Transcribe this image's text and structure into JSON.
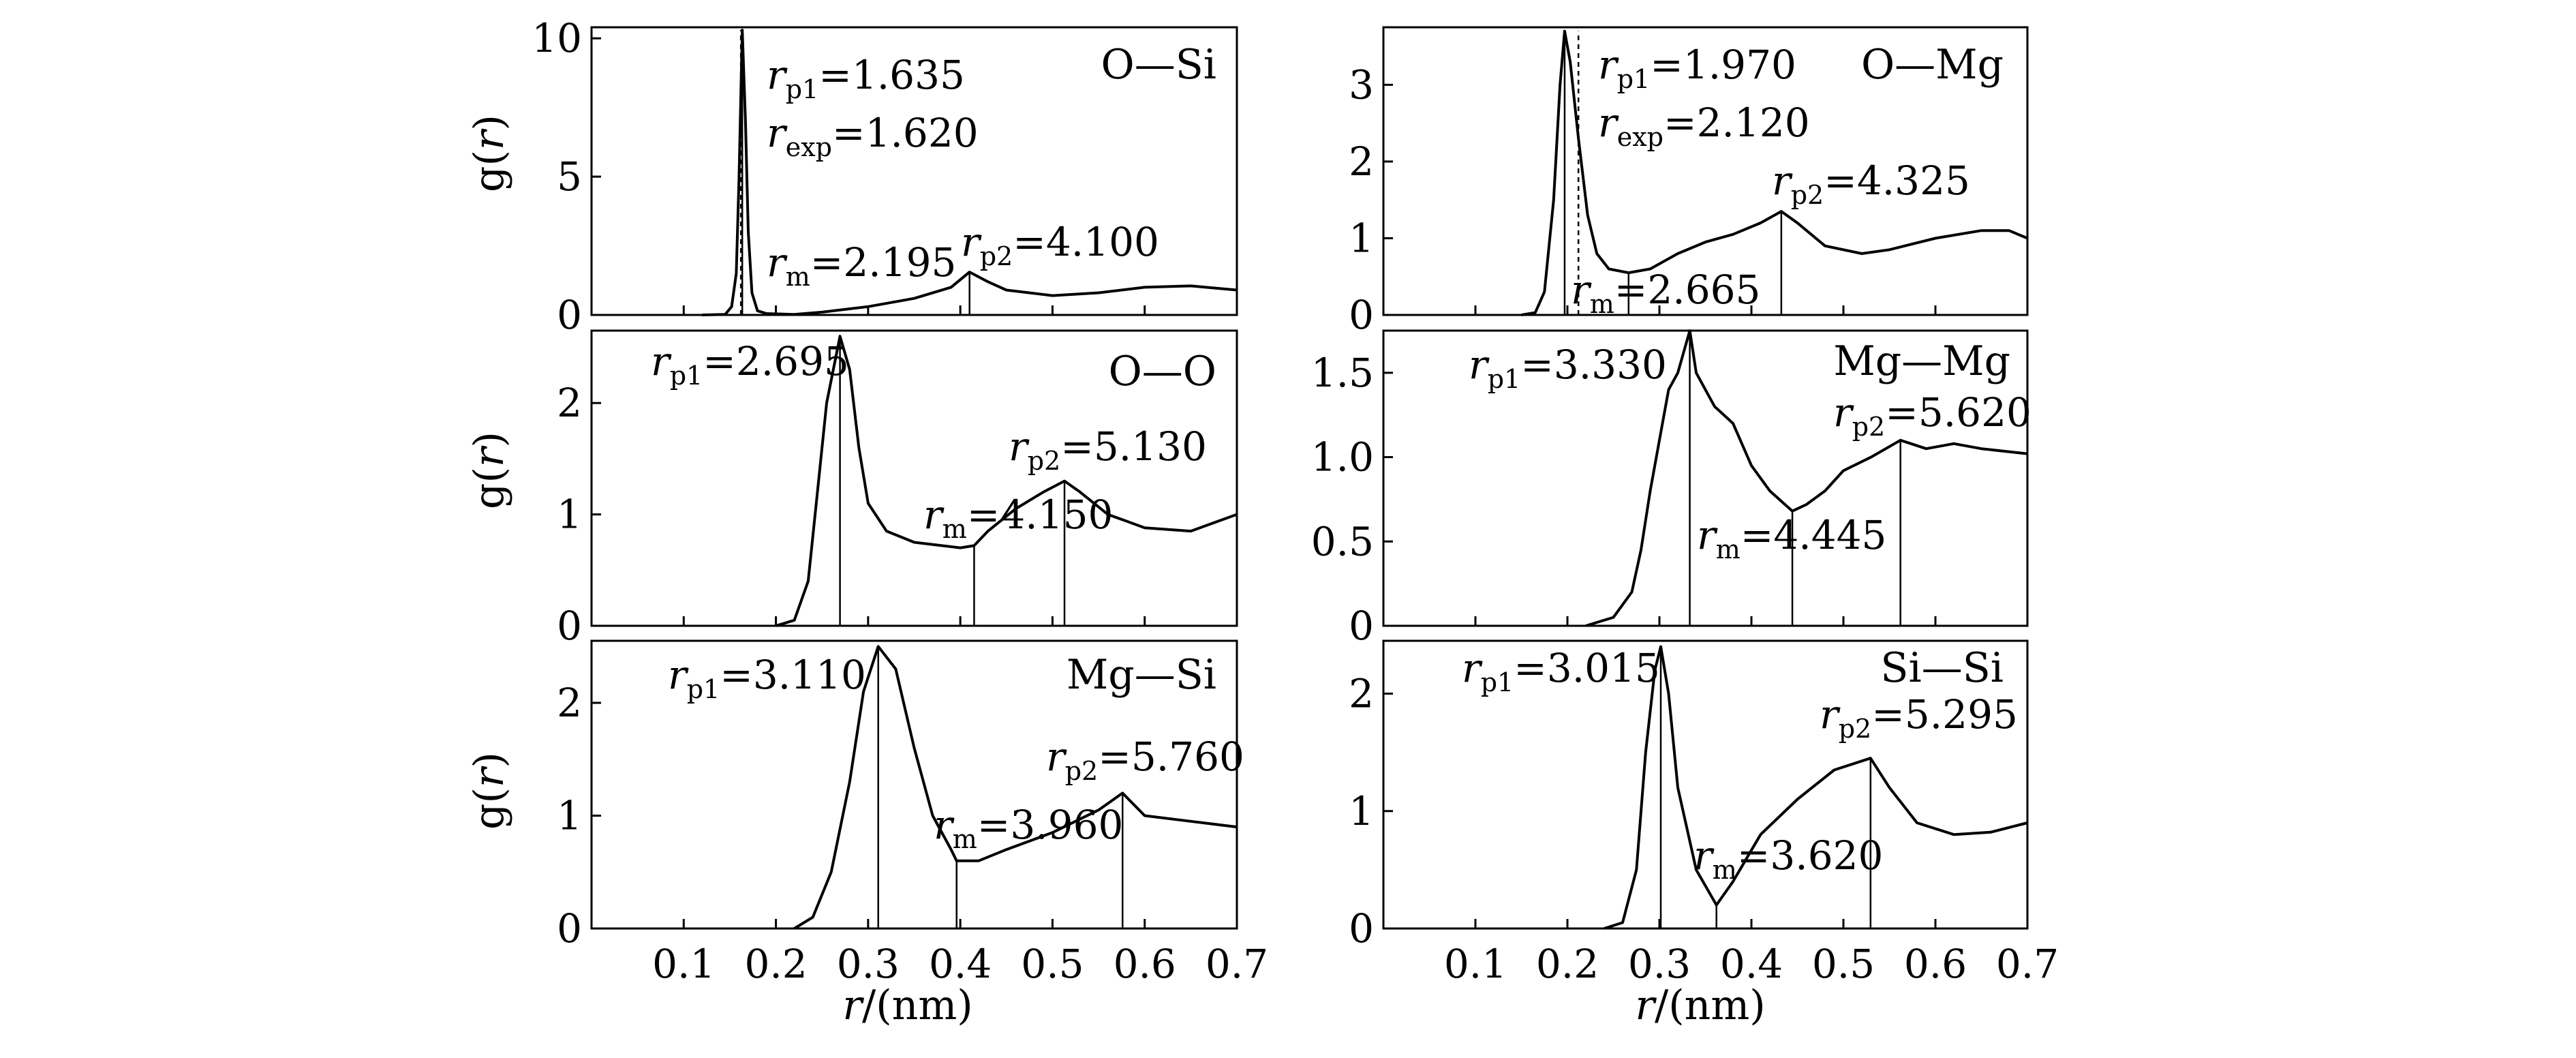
{
  "figure": {
    "x_axis_title_prefix": "r",
    "x_axis_title_suffix": "/(nm)",
    "y_axis_title_g": "g(",
    "y_axis_title_r": "r",
    "y_axis_title_close": ")"
  },
  "chart_data": [
    {
      "type": "line",
      "id": "O-Si",
      "label": "O—Si",
      "xlim": [
        0,
        0.7
      ],
      "ylim": [
        0,
        10.4
      ],
      "xticks": [
        0.1,
        0.2,
        0.3,
        0.4,
        0.5,
        0.6,
        0.7
      ],
      "show_xtick_labels": false,
      "yticks": [
        0,
        5,
        10
      ],
      "ytick_labels": [
        "0",
        "5",
        "10"
      ],
      "curve": [
        [
          0.12,
          0
        ],
        [
          0.145,
          0.02
        ],
        [
          0.152,
          0.3
        ],
        [
          0.157,
          1.5
        ],
        [
          0.16,
          5
        ],
        [
          0.1635,
          10.3
        ],
        [
          0.167,
          7
        ],
        [
          0.17,
          3
        ],
        [
          0.174,
          0.8
        ],
        [
          0.18,
          0.15
        ],
        [
          0.19,
          0.05
        ],
        [
          0.2195,
          0.02
        ],
        [
          0.25,
          0.1
        ],
        [
          0.3,
          0.3
        ],
        [
          0.35,
          0.6
        ],
        [
          0.39,
          1.0
        ],
        [
          0.41,
          1.55
        ],
        [
          0.43,
          1.2
        ],
        [
          0.45,
          0.9
        ],
        [
          0.5,
          0.7
        ],
        [
          0.55,
          0.8
        ],
        [
          0.6,
          1.0
        ],
        [
          0.65,
          1.05
        ],
        [
          0.7,
          0.9
        ]
      ],
      "vlines": [
        {
          "x": 0.1635,
          "y": 10.3,
          "style": "solid"
        },
        {
          "x": 0.162,
          "y": 10.3,
          "style": "dashed"
        },
        {
          "x": 0.41,
          "y": 1.55,
          "style": "solid"
        }
      ],
      "annotations": [
        {
          "main": "r",
          "sub": "p1",
          "value": "=1.635"
        },
        {
          "main": "r",
          "sub": "exp",
          "value": "=1.620"
        },
        {
          "main": "r",
          "sub": "m",
          "value": "=2.195"
        },
        {
          "main": "r",
          "sub": "p2",
          "value": "=4.100"
        }
      ]
    },
    {
      "type": "line",
      "id": "O-Mg",
      "label": "O—Mg",
      "xlim": [
        0,
        0.7
      ],
      "ylim": [
        0,
        3.75
      ],
      "xticks": [
        0.1,
        0.2,
        0.3,
        0.4,
        0.5,
        0.6,
        0.7
      ],
      "show_xtick_labels": false,
      "yticks": [
        0,
        1,
        2,
        3
      ],
      "ytick_labels": [
        "0",
        "1",
        "2",
        "3"
      ],
      "curve": [
        [
          0.15,
          0
        ],
        [
          0.165,
          0.03
        ],
        [
          0.175,
          0.3
        ],
        [
          0.185,
          1.5
        ],
        [
          0.192,
          3.0
        ],
        [
          0.197,
          3.7
        ],
        [
          0.203,
          3.3
        ],
        [
          0.212,
          2.3
        ],
        [
          0.222,
          1.3
        ],
        [
          0.232,
          0.8
        ],
        [
          0.245,
          0.6
        ],
        [
          0.2665,
          0.55
        ],
        [
          0.29,
          0.6
        ],
        [
          0.32,
          0.8
        ],
        [
          0.35,
          0.95
        ],
        [
          0.38,
          1.05
        ],
        [
          0.41,
          1.2
        ],
        [
          0.4325,
          1.35
        ],
        [
          0.45,
          1.2
        ],
        [
          0.48,
          0.9
        ],
        [
          0.52,
          0.8
        ],
        [
          0.55,
          0.85
        ],
        [
          0.6,
          1.0
        ],
        [
          0.65,
          1.1
        ],
        [
          0.68,
          1.1
        ],
        [
          0.7,
          1.0
        ]
      ],
      "vlines": [
        {
          "x": 0.197,
          "y": 3.7,
          "style": "solid"
        },
        {
          "x": 0.212,
          "y": 3.7,
          "style": "dashed"
        },
        {
          "x": 0.2665,
          "y": 0.55,
          "style": "solid"
        },
        {
          "x": 0.4325,
          "y": 1.35,
          "style": "solid"
        }
      ],
      "annotations": [
        {
          "main": "r",
          "sub": "p1",
          "value": "=1.970"
        },
        {
          "main": "r",
          "sub": "exp",
          "value": "=2.120"
        },
        {
          "main": "r",
          "sub": "p2",
          "value": "=4.325"
        },
        {
          "main": "r",
          "sub": "m",
          "value": "=2.665"
        }
      ]
    },
    {
      "type": "line",
      "id": "O-O",
      "label": "O—O",
      "xlim": [
        0,
        0.7
      ],
      "ylim": [
        0,
        2.65
      ],
      "xticks": [
        0.1,
        0.2,
        0.3,
        0.4,
        0.5,
        0.6,
        0.7
      ],
      "show_xtick_labels": false,
      "yticks": [
        0,
        1,
        2
      ],
      "ytick_labels": [
        "0",
        "1",
        "2"
      ],
      "curve": [
        [
          0.2,
          0
        ],
        [
          0.22,
          0.05
        ],
        [
          0.235,
          0.4
        ],
        [
          0.245,
          1.2
        ],
        [
          0.255,
          2.0
        ],
        [
          0.2695,
          2.6
        ],
        [
          0.28,
          2.3
        ],
        [
          0.29,
          1.6
        ],
        [
          0.3,
          1.1
        ],
        [
          0.32,
          0.85
        ],
        [
          0.35,
          0.75
        ],
        [
          0.38,
          0.72
        ],
        [
          0.4,
          0.7
        ],
        [
          0.415,
          0.72
        ],
        [
          0.43,
          0.85
        ],
        [
          0.46,
          1.05
        ],
        [
          0.49,
          1.2
        ],
        [
          0.513,
          1.3
        ],
        [
          0.53,
          1.2
        ],
        [
          0.56,
          1.0
        ],
        [
          0.6,
          0.88
        ],
        [
          0.65,
          0.85
        ],
        [
          0.7,
          1.0
        ]
      ],
      "vlines": [
        {
          "x": 0.2695,
          "y": 2.6,
          "style": "solid"
        },
        {
          "x": 0.415,
          "y": 0.72,
          "style": "solid"
        },
        {
          "x": 0.513,
          "y": 1.3,
          "style": "solid"
        }
      ],
      "annotations": [
        {
          "main": "r",
          "sub": "p1",
          "value": "=2.695"
        },
        {
          "main": "r",
          "sub": "p2",
          "value": "=5.130"
        },
        {
          "main": "r",
          "sub": "m",
          "value": "=4.150"
        }
      ]
    },
    {
      "type": "line",
      "id": "Mg-Mg",
      "label": "Mg—Mg",
      "xlim": [
        0,
        0.7
      ],
      "ylim": [
        0,
        1.75
      ],
      "xticks": [
        0.1,
        0.2,
        0.3,
        0.4,
        0.5,
        0.6,
        0.7
      ],
      "show_xtick_labels": false,
      "yticks": [
        0,
        0.5,
        1.0,
        1.5
      ],
      "ytick_labels": [
        "0",
        "0.5",
        "1.0",
        "1.5"
      ],
      "curve": [
        [
          0.22,
          0
        ],
        [
          0.25,
          0.05
        ],
        [
          0.27,
          0.2
        ],
        [
          0.28,
          0.45
        ],
        [
          0.29,
          0.8
        ],
        [
          0.3,
          1.1
        ],
        [
          0.31,
          1.4
        ],
        [
          0.32,
          1.5
        ],
        [
          0.333,
          1.75
        ],
        [
          0.34,
          1.5
        ],
        [
          0.36,
          1.3
        ],
        [
          0.38,
          1.2
        ],
        [
          0.4,
          0.95
        ],
        [
          0.42,
          0.8
        ],
        [
          0.4445,
          0.68
        ],
        [
          0.46,
          0.72
        ],
        [
          0.48,
          0.8
        ],
        [
          0.5,
          0.92
        ],
        [
          0.53,
          1.0
        ],
        [
          0.562,
          1.1
        ],
        [
          0.59,
          1.05
        ],
        [
          0.62,
          1.08
        ],
        [
          0.65,
          1.05
        ],
        [
          0.7,
          1.02
        ]
      ],
      "vlines": [
        {
          "x": 0.333,
          "y": 1.75,
          "style": "solid"
        },
        {
          "x": 0.4445,
          "y": 0.68,
          "style": "solid"
        },
        {
          "x": 0.562,
          "y": 1.1,
          "style": "solid"
        }
      ],
      "annotations": [
        {
          "main": "r",
          "sub": "p1",
          "value": "=3.330"
        },
        {
          "main": "r",
          "sub": "p2",
          "value": "=5.620"
        },
        {
          "main": "r",
          "sub": "m",
          "value": "=4.445"
        }
      ]
    },
    {
      "type": "line",
      "id": "Mg-Si",
      "label": "Mg—Si",
      "xlim": [
        0,
        0.7
      ],
      "ylim": [
        0,
        2.55
      ],
      "xticks": [
        0.1,
        0.2,
        0.3,
        0.4,
        0.5,
        0.6,
        0.7
      ],
      "show_xtick_labels": true,
      "xtick_labels": [
        "0.1",
        "0.2",
        "0.3",
        "0.4",
        "0.5",
        "0.6",
        "0.7"
      ],
      "yticks": [
        0,
        1,
        2
      ],
      "ytick_labels": [
        "0",
        "1",
        "2"
      ],
      "curve": [
        [
          0.22,
          0
        ],
        [
          0.24,
          0.1
        ],
        [
          0.26,
          0.5
        ],
        [
          0.28,
          1.3
        ],
        [
          0.295,
          2.1
        ],
        [
          0.311,
          2.5
        ],
        [
          0.33,
          2.3
        ],
        [
          0.35,
          1.6
        ],
        [
          0.37,
          1.0
        ],
        [
          0.39,
          0.7
        ],
        [
          0.396,
          0.6
        ],
        [
          0.42,
          0.6
        ],
        [
          0.45,
          0.7
        ],
        [
          0.5,
          0.85
        ],
        [
          0.55,
          1.05
        ],
        [
          0.576,
          1.2
        ],
        [
          0.6,
          1.0
        ],
        [
          0.65,
          0.95
        ],
        [
          0.7,
          0.9
        ]
      ],
      "vlines": [
        {
          "x": 0.311,
          "y": 2.5,
          "style": "solid"
        },
        {
          "x": 0.396,
          "y": 0.6,
          "style": "solid"
        },
        {
          "x": 0.576,
          "y": 1.2,
          "style": "solid"
        }
      ],
      "annotations": [
        {
          "main": "r",
          "sub": "p1",
          "value": "=3.110"
        },
        {
          "main": "r",
          "sub": "p2",
          "value": "=5.760"
        },
        {
          "main": "r",
          "sub": "m",
          "value": "=3.960"
        }
      ]
    },
    {
      "type": "line",
      "id": "Si-Si",
      "label": "Si—Si",
      "xlim": [
        0,
        0.7
      ],
      "ylim": [
        0,
        2.45
      ],
      "xticks": [
        0.1,
        0.2,
        0.3,
        0.4,
        0.5,
        0.6,
        0.7
      ],
      "show_xtick_labels": true,
      "xtick_labels": [
        "0.1",
        "0.2",
        "0.3",
        "0.4",
        "0.5",
        "0.6",
        "0.7"
      ],
      "yticks": [
        0,
        1,
        2
      ],
      "ytick_labels": [
        "0",
        "1",
        "2"
      ],
      "curve": [
        [
          0.24,
          0
        ],
        [
          0.26,
          0.05
        ],
        [
          0.275,
          0.5
        ],
        [
          0.285,
          1.5
        ],
        [
          0.295,
          2.2
        ],
        [
          0.3015,
          2.4
        ],
        [
          0.31,
          2.0
        ],
        [
          0.32,
          1.2
        ],
        [
          0.34,
          0.5
        ],
        [
          0.362,
          0.2
        ],
        [
          0.38,
          0.4
        ],
        [
          0.41,
          0.8
        ],
        [
          0.45,
          1.1
        ],
        [
          0.49,
          1.35
        ],
        [
          0.5295,
          1.45
        ],
        [
          0.55,
          1.2
        ],
        [
          0.58,
          0.9
        ],
        [
          0.62,
          0.8
        ],
        [
          0.66,
          0.82
        ],
        [
          0.7,
          0.9
        ]
      ],
      "vlines": [
        {
          "x": 0.3015,
          "y": 2.4,
          "style": "solid"
        },
        {
          "x": 0.362,
          "y": 0.2,
          "style": "solid"
        },
        {
          "x": 0.5295,
          "y": 1.45,
          "style": "solid"
        }
      ],
      "annotations": [
        {
          "main": "r",
          "sub": "p1",
          "value": "=3.015"
        },
        {
          "main": "r",
          "sub": "p2",
          "value": "=5.295"
        },
        {
          "main": "r",
          "sub": "m",
          "value": "=3.620"
        }
      ]
    }
  ]
}
